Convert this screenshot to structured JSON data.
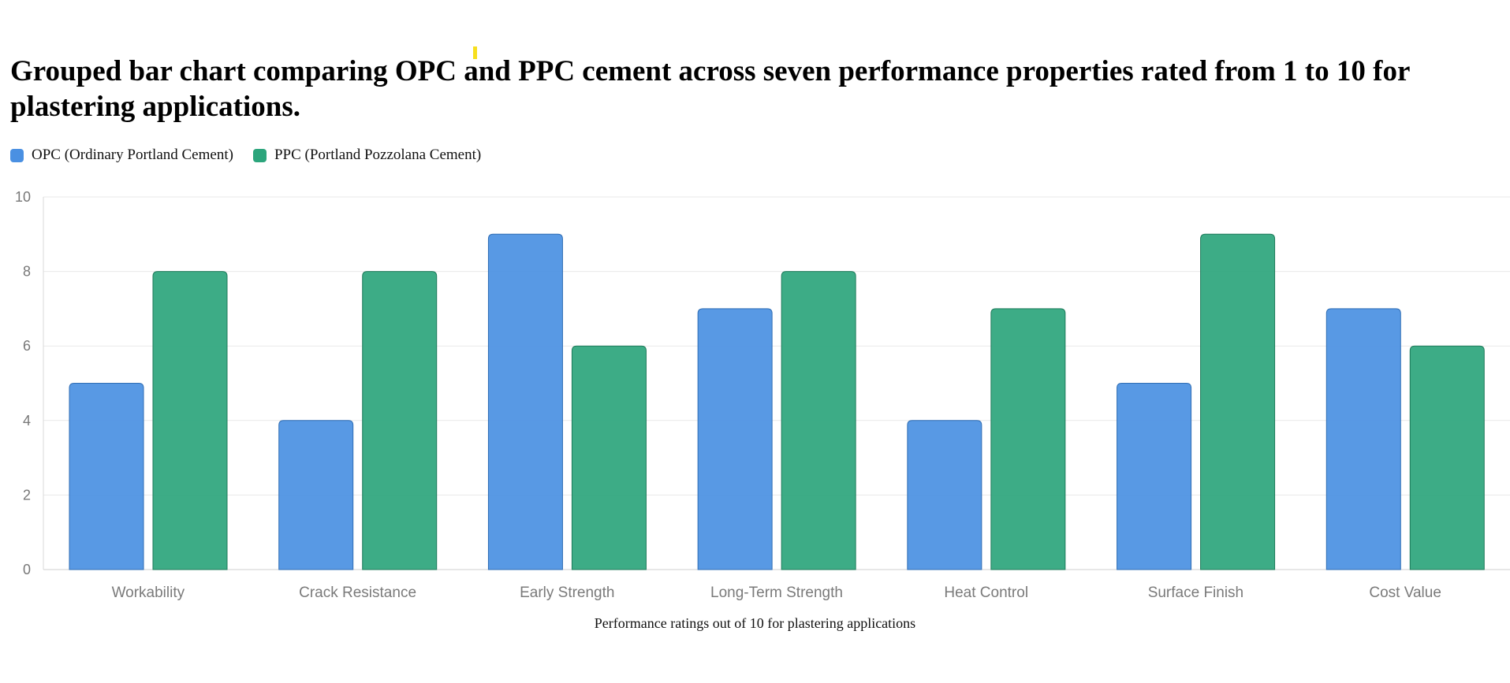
{
  "page": {
    "title": "Grouped bar chart comparing OPC and PPC cement across seven performance properties rated from 1 to 10 for plastering applications."
  },
  "legend": {
    "items": [
      {
        "label": "OPC (Ordinary Portland Cement)",
        "color": "#4a90e2"
      },
      {
        "label": "PPC (Portland Pozzolana Cement)",
        "color": "#2ca57c"
      }
    ]
  },
  "chart_data": {
    "type": "bar",
    "title": "Grouped bar chart comparing OPC and PPC cement across seven performance properties rated from 1 to 10 for plastering applications.",
    "xlabel": "Performance ratings out of 10 for plastering applications",
    "ylabel": "",
    "ylim": [
      0,
      10
    ],
    "yticks": [
      "0",
      "2",
      "4",
      "6",
      "8",
      "10"
    ],
    "grid": true,
    "legend_position": "top-left",
    "categories": [
      "Workability",
      "Crack Resistance",
      "Early Strength",
      "Long-Term Strength",
      "Heat Control",
      "Surface Finish",
      "Cost Value"
    ],
    "series": [
      {
        "name": "OPC (Ordinary Portland Cement)",
        "values": [
          5,
          4,
          9,
          7,
          4,
          5,
          7
        ],
        "color": "#4a90e2"
      },
      {
        "name": "PPC (Portland Pozzolana Cement)",
        "values": [
          8,
          8,
          6,
          8,
          7,
          9,
          6
        ],
        "color": "#2ca57c"
      }
    ]
  }
}
